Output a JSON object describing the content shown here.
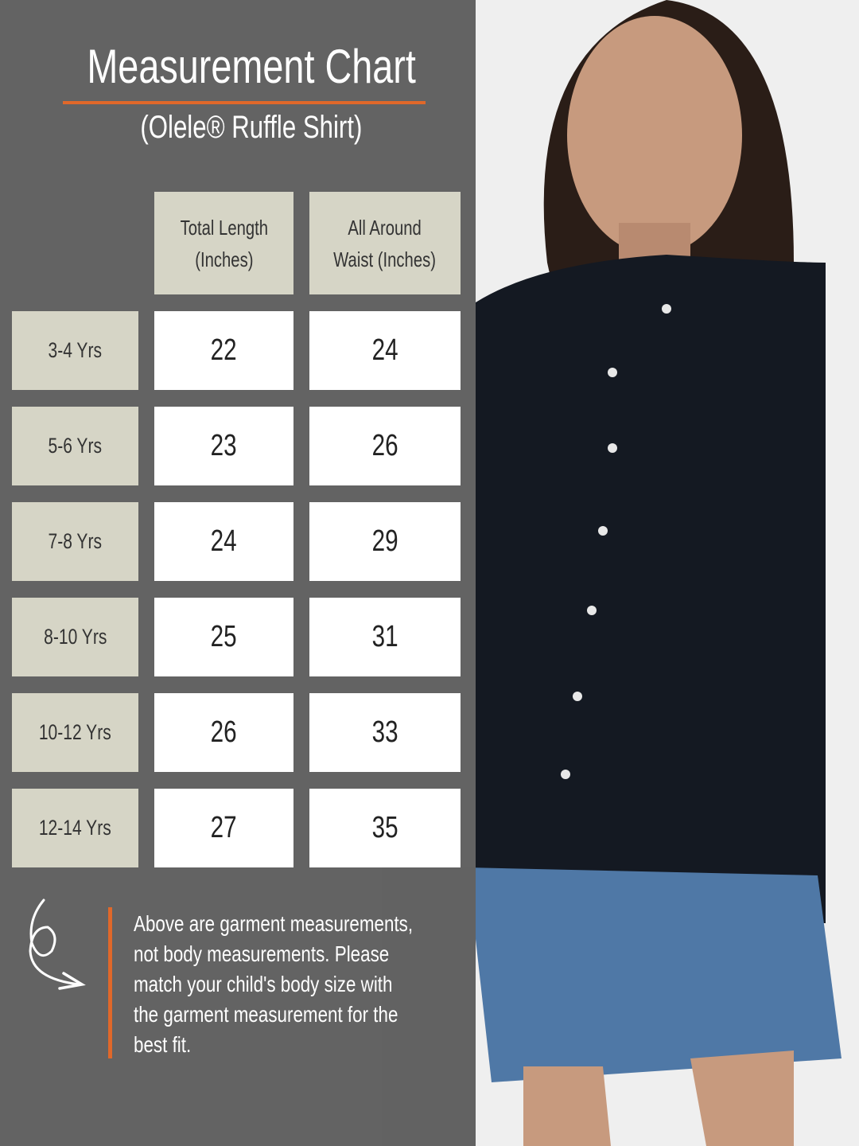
{
  "title": "Measurement Chart",
  "subtitle": "(Olele® Ruffle Shirt)",
  "table": {
    "headers": [
      {
        "line1": "Total Length",
        "line2": "(Inches)"
      },
      {
        "line1": "All Around",
        "line2": "Waist (Inches)"
      }
    ],
    "rows": [
      {
        "size": "3-4 Yrs",
        "length": "22",
        "waist": "24"
      },
      {
        "size": "5-6 Yrs",
        "length": "23",
        "waist": "26"
      },
      {
        "size": "7-8 Yrs",
        "length": "24",
        "waist": "29"
      },
      {
        "size": "8-10 Yrs",
        "length": "25",
        "waist": "31"
      },
      {
        "size": "10-12 Yrs",
        "length": "26",
        "waist": "33"
      },
      {
        "size": "12-14 Yrs",
        "length": "27",
        "waist": "35"
      }
    ]
  },
  "note": {
    "lines": [
      "Above are garment measurements,",
      "not body measurements. Please",
      "match your child's body size with",
      "the garment measurement for the",
      "best fit."
    ],
    "icon": "curly-arrow-icon"
  },
  "colors": {
    "panel": "#636363",
    "accent": "#e0682a",
    "header_cell": "#d6d5c6"
  }
}
